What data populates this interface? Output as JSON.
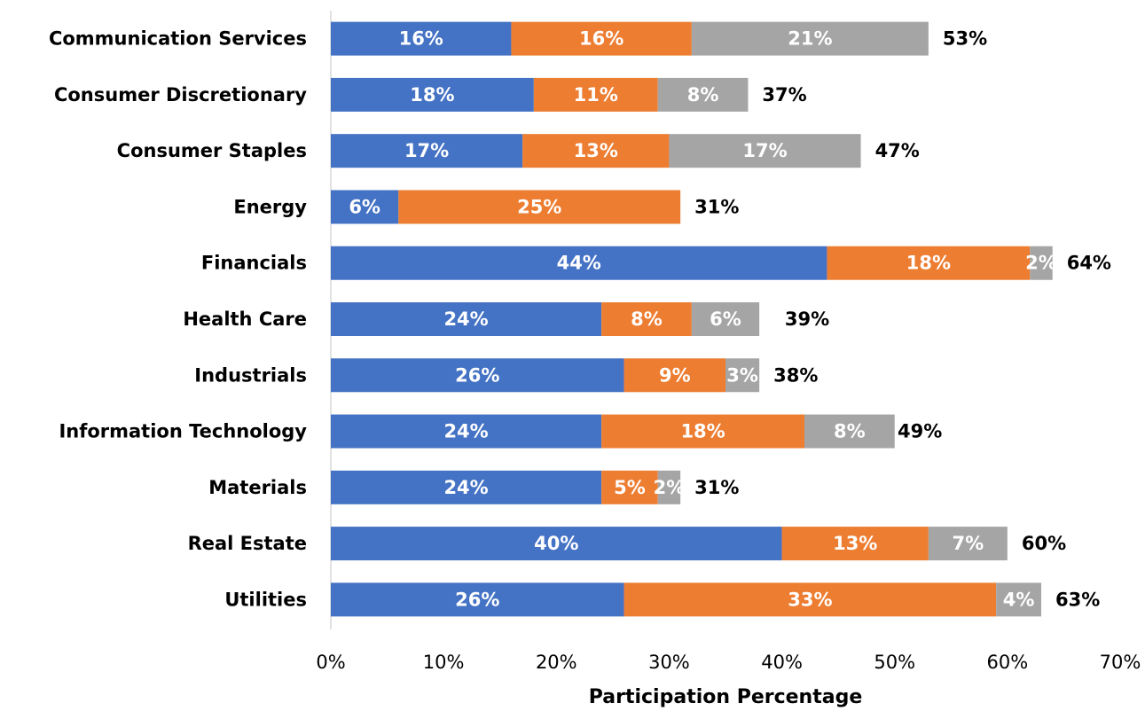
{
  "chart_data": {
    "type": "stacked_barh",
    "categories": [
      "Communication Services",
      "Consumer Discretionary",
      "Consumer Staples",
      "Energy",
      "Financials",
      "Health Care",
      "Industrials",
      "Information Technology",
      "Materials",
      "Real Estate",
      "Utilities"
    ],
    "series": [
      {
        "color": "#4472c4",
        "values": [
          16,
          18,
          17,
          6,
          44,
          24,
          26,
          24,
          24,
          40,
          26
        ],
        "value_labels": [
          "16%",
          "18%",
          "17%",
          "6%",
          "44%",
          "24%",
          "26%",
          "24%",
          "24%",
          "40%",
          "26%"
        ]
      },
      {
        "color": "#ed7d31",
        "values": [
          16,
          11,
          13,
          25,
          18,
          8,
          9,
          18,
          5,
          13,
          33
        ],
        "value_labels": [
          "16%",
          "11%",
          "13%",
          "25%",
          "18%",
          "8%",
          "9%",
          "18%",
          "5%",
          "13%",
          "33%"
        ]
      },
      {
        "color": "#a5a5a5",
        "values": [
          21,
          8,
          17,
          null,
          2,
          6,
          3,
          8,
          2,
          7,
          4
        ],
        "value_labels": [
          "21%",
          "8%",
          "17%",
          null,
          "2%",
          "6%",
          "3%",
          "8%",
          "2%",
          "7%",
          "4%"
        ]
      }
    ],
    "totals": [
      53,
      37,
      47,
      31,
      64,
      39,
      38,
      49,
      31,
      60,
      63
    ],
    "total_labels": [
      "53%",
      "37%",
      "47%",
      "31%",
      "64%",
      "39%",
      "38%",
      "49%",
      "31%",
      "60%",
      "63%"
    ],
    "x_label": "Participation Percentage",
    "xlim": [
      0,
      70
    ],
    "xticks": [
      {
        "value": 0,
        "label": "0%"
      },
      {
        "value": 10,
        "label": "10%"
      },
      {
        "value": 20,
        "label": "20%"
      },
      {
        "value": 30,
        "label": "30%"
      },
      {
        "value": 40,
        "label": "40%"
      },
      {
        "value": 50,
        "label": "50%"
      },
      {
        "value": 60,
        "label": "60%"
      },
      {
        "value": 70,
        "label": "70%"
      }
    ],
    "grid": false
  }
}
